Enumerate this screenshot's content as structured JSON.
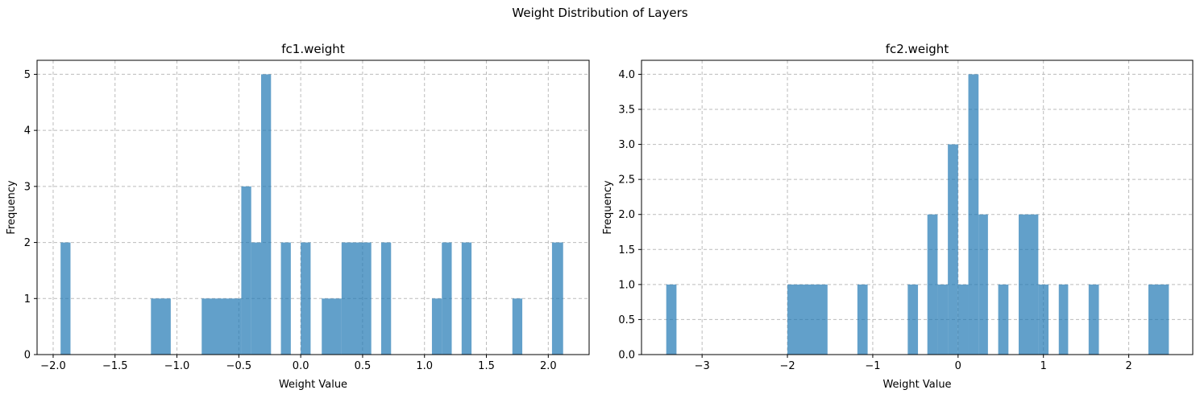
{
  "figure": {
    "suptitle": "Weight Distribution of Layers"
  },
  "chart_data": [
    {
      "type": "bar",
      "title": "fc1.weight",
      "xlabel": "Weight Value",
      "ylabel": "Frequency",
      "xlim": [
        -2.13,
        2.33
      ],
      "ylim": [
        0,
        5.25
      ],
      "xticks": [
        -2.0,
        -1.5,
        -1.0,
        -0.5,
        0.0,
        0.5,
        1.0,
        1.5,
        2.0
      ],
      "xtick_labels": [
        "−2.0",
        "−1.5",
        "−1.0",
        "−0.5",
        "0.0",
        "0.5",
        "1.0",
        "1.5",
        "2.0"
      ],
      "yticks": [
        0,
        1,
        2,
        3,
        4,
        5
      ],
      "ytick_labels": [
        "0",
        "1",
        "2",
        "3",
        "4",
        "5"
      ],
      "grid": true,
      "bins": [
        {
          "x0": -1.94,
          "x1": -1.86,
          "count": 2
        },
        {
          "x0": -1.21,
          "x1": -1.05,
          "count": 1
        },
        {
          "x0": -0.8,
          "x1": -0.48,
          "count": 1
        },
        {
          "x0": -0.48,
          "x1": -0.4,
          "count": 3
        },
        {
          "x0": -0.4,
          "x1": -0.32,
          "count": 2
        },
        {
          "x0": -0.32,
          "x1": -0.24,
          "count": 5
        },
        {
          "x0": -0.16,
          "x1": -0.08,
          "count": 2
        },
        {
          "x0": 0.0,
          "x1": 0.08,
          "count": 2
        },
        {
          "x0": 0.17,
          "x1": 0.33,
          "count": 1
        },
        {
          "x0": 0.33,
          "x1": 0.57,
          "count": 2
        },
        {
          "x0": 0.65,
          "x1": 0.73,
          "count": 2
        },
        {
          "x0": 1.06,
          "x1": 1.14,
          "count": 1
        },
        {
          "x0": 1.14,
          "x1": 1.22,
          "count": 2
        },
        {
          "x0": 1.3,
          "x1": 1.38,
          "count": 2
        },
        {
          "x0": 1.71,
          "x1": 1.79,
          "count": 1
        },
        {
          "x0": 2.03,
          "x1": 2.12,
          "count": 2
        }
      ]
    },
    {
      "type": "bar",
      "title": "fc2.weight",
      "xlabel": "Weight Value",
      "ylabel": "Frequency",
      "xlim": [
        -3.71,
        2.75
      ],
      "ylim": [
        0,
        4.2
      ],
      "xticks": [
        -3,
        -2,
        -1,
        0,
        1,
        2
      ],
      "xtick_labels": [
        "−3",
        "−2",
        "−1",
        "0",
        "1",
        "2"
      ],
      "yticks": [
        0,
        0.5,
        1,
        1.5,
        2,
        2.5,
        3,
        3.5,
        4
      ],
      "ytick_labels": [
        "0.0",
        "0.5",
        "1.0",
        "1.5",
        "2.0",
        "2.5",
        "3.0",
        "3.5",
        "4.0"
      ],
      "grid": true,
      "bins": [
        {
          "x0": -3.42,
          "x1": -3.3,
          "count": 1
        },
        {
          "x0": -2.0,
          "x1": -1.53,
          "count": 1
        },
        {
          "x0": -1.18,
          "x1": -1.06,
          "count": 1
        },
        {
          "x0": -0.59,
          "x1": -0.47,
          "count": 1
        },
        {
          "x0": -0.36,
          "x1": -0.24,
          "count": 2
        },
        {
          "x0": -0.24,
          "x1": -0.12,
          "count": 1
        },
        {
          "x0": -0.12,
          "x1": 0.0,
          "count": 3
        },
        {
          "x0": 0.0,
          "x1": 0.12,
          "count": 1
        },
        {
          "x0": 0.12,
          "x1": 0.24,
          "count": 4
        },
        {
          "x0": 0.24,
          "x1": 0.35,
          "count": 2
        },
        {
          "x0": 0.47,
          "x1": 0.59,
          "count": 1
        },
        {
          "x0": 0.71,
          "x1": 0.94,
          "count": 2
        },
        {
          "x0": 0.94,
          "x1": 1.06,
          "count": 1
        },
        {
          "x0": 1.18,
          "x1": 1.29,
          "count": 1
        },
        {
          "x0": 1.53,
          "x1": 1.65,
          "count": 1
        },
        {
          "x0": 2.23,
          "x1": 2.47,
          "count": 1
        }
      ]
    }
  ],
  "colors": {
    "bar": "#1f77b4",
    "grid": "#b0b0b0"
  }
}
